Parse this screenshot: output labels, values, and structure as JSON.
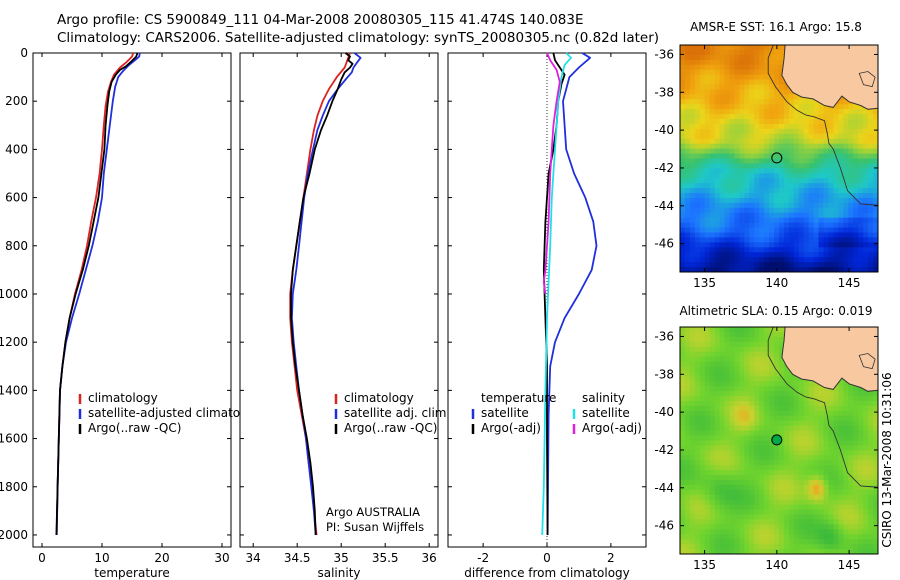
{
  "header": {
    "line1": "Argo profile: CS 5900849_111 04-Mar-2008 20080305_115 41.474S 140.083E",
    "line2": "Climatology: CARS2006. Satellite-adjusted climatology: synTS_20080305.nc (0.82d later)"
  },
  "colors": {
    "climatology": "#dd2222",
    "satellite": "#1f2fdd",
    "argo": "#000000",
    "satellite_diff_salinity": "#22e0e8",
    "argo_diff_salinity": "#dd22dd",
    "land": "#f8c8a0",
    "coast": "#333333",
    "marker": "#00aa44"
  },
  "chart_data": [
    {
      "type": "line",
      "xlabel": "temperature",
      "ylabel": "",
      "xlim": [
        -1.5,
        31.5
      ],
      "ylim": [
        2050,
        0
      ],
      "xticks": [
        "0",
        "10",
        "20",
        "30"
      ],
      "yticks": [
        "0",
        "200",
        "400",
        "600",
        "800",
        "1000",
        "1200",
        "1400",
        "1600",
        "1800",
        "2000"
      ],
      "legend": [
        "climatology",
        "satellite-adjusted climatology",
        "Argo(..raw -QC)"
      ],
      "series": [
        {
          "name": "climatology",
          "color_key": "climatology",
          "points": [
            [
              15.2,
              0
            ],
            [
              15.0,
              15
            ],
            [
              14.0,
              40
            ],
            [
              13.0,
              60
            ],
            [
              12.0,
              90
            ],
            [
              11.5,
              120
            ],
            [
              11.0,
              160
            ],
            [
              10.6,
              220
            ],
            [
              10.3,
              300
            ],
            [
              10.0,
              400
            ],
            [
              9.6,
              500
            ],
            [
              9.0,
              600
            ],
            [
              8.2,
              700
            ],
            [
              7.5,
              800
            ],
            [
              6.6,
              900
            ],
            [
              5.5,
              1000
            ],
            [
              4.6,
              1100
            ],
            [
              3.9,
              1200
            ],
            [
              3.4,
              1300
            ],
            [
              3.0,
              1400
            ],
            [
              2.8,
              1600
            ],
            [
              2.6,
              1800
            ],
            [
              2.45,
              2000
            ]
          ]
        },
        {
          "name": "satellite-adjusted climatology",
          "color_key": "satellite",
          "points": [
            [
              16.3,
              0
            ],
            [
              16.2,
              15
            ],
            [
              15.5,
              30
            ],
            [
              14.5,
              50
            ],
            [
              13.5,
              75
            ],
            [
              12.7,
              100
            ],
            [
              12.2,
              140
            ],
            [
              11.8,
              200
            ],
            [
              11.5,
              260
            ],
            [
              11.3,
              300
            ],
            [
              10.8,
              400
            ],
            [
              10.3,
              500
            ],
            [
              10.0,
              600
            ],
            [
              9.3,
              700
            ],
            [
              8.4,
              800
            ],
            [
              7.3,
              900
            ],
            [
              6.2,
              1000
            ],
            [
              5.0,
              1100
            ],
            [
              4.0,
              1200
            ],
            [
              3.4,
              1300
            ],
            [
              3.0,
              1400
            ],
            [
              2.8,
              1600
            ],
            [
              2.6,
              1800
            ],
            [
              2.45,
              2000
            ]
          ]
        },
        {
          "name": "Argo(..raw -QC)",
          "color_key": "argo",
          "points": [
            [
              15.9,
              0
            ],
            [
              15.7,
              15
            ],
            [
              14.9,
              35
            ],
            [
              14.0,
              55
            ],
            [
              13.0,
              70
            ],
            [
              12.3,
              90
            ],
            [
              11.6,
              120
            ],
            [
              11.2,
              160
            ],
            [
              10.9,
              220
            ],
            [
              10.6,
              300
            ],
            [
              10.4,
              400
            ],
            [
              9.9,
              500
            ],
            [
              9.4,
              600
            ],
            [
              8.6,
              700
            ],
            [
              7.8,
              800
            ],
            [
              6.8,
              900
            ],
            [
              5.6,
              1000
            ],
            [
              4.6,
              1100
            ],
            [
              3.9,
              1200
            ],
            [
              3.4,
              1300
            ],
            [
              3.0,
              1400
            ],
            [
              2.8,
              1600
            ],
            [
              2.6,
              1800
            ],
            [
              2.4,
              2000
            ]
          ]
        }
      ]
    },
    {
      "type": "line",
      "xlabel": "salinity",
      "xlim": [
        33.85,
        36.1
      ],
      "ylim": [
        2050,
        0
      ],
      "xticks": [
        "34",
        "34.5",
        "35",
        "35.5",
        "36"
      ],
      "legend": [
        "climatology",
        "satellite adj. clim.",
        "Argo(..raw -QC)"
      ],
      "annotations": [
        "Argo AUSTRALIA",
        "PI: Susan Wijffels"
      ],
      "series": [
        {
          "name": "climatology",
          "color_key": "climatology",
          "points": [
            [
              35.1,
              0
            ],
            [
              35.08,
              20
            ],
            [
              35.04,
              60
            ],
            [
              34.95,
              100
            ],
            [
              34.86,
              150
            ],
            [
              34.79,
              200
            ],
            [
              34.73,
              260
            ],
            [
              34.69,
              320
            ],
            [
              34.65,
              400
            ],
            [
              34.61,
              500
            ],
            [
              34.57,
              600
            ],
            [
              34.53,
              700
            ],
            [
              34.49,
              800
            ],
            [
              34.45,
              900
            ],
            [
              34.42,
              1000
            ],
            [
              34.42,
              1100
            ],
            [
              34.44,
              1200
            ],
            [
              34.47,
              1300
            ],
            [
              34.5,
              1400
            ],
            [
              34.55,
              1500
            ],
            [
              34.6,
              1600
            ],
            [
              34.63,
              1700
            ],
            [
              34.67,
              1800
            ],
            [
              34.69,
              1900
            ],
            [
              34.72,
              2000
            ]
          ]
        },
        {
          "name": "satellite adj. clim.",
          "color_key": "satellite",
          "points": [
            [
              35.15,
              0
            ],
            [
              35.22,
              20
            ],
            [
              35.18,
              40
            ],
            [
              35.14,
              60
            ],
            [
              35.12,
              80
            ],
            [
              35.05,
              110
            ],
            [
              34.96,
              150
            ],
            [
              34.86,
              200
            ],
            [
              34.79,
              260
            ],
            [
              34.73,
              320
            ],
            [
              34.68,
              400
            ],
            [
              34.62,
              500
            ],
            [
              34.58,
              600
            ],
            [
              34.55,
              700
            ],
            [
              34.52,
              800
            ],
            [
              34.49,
              900
            ],
            [
              34.45,
              1000
            ],
            [
              34.44,
              1100
            ],
            [
              34.46,
              1200
            ],
            [
              34.49,
              1300
            ],
            [
              34.52,
              1400
            ],
            [
              34.56,
              1500
            ],
            [
              34.6,
              1600
            ],
            [
              34.63,
              1700
            ],
            [
              34.66,
              1800
            ],
            [
              34.69,
              1900
            ],
            [
              34.71,
              2000
            ]
          ]
        },
        {
          "name": "Argo(..raw -QC)",
          "color_key": "argo",
          "points": [
            [
              35.05,
              0
            ],
            [
              35.1,
              15
            ],
            [
              35.08,
              30
            ],
            [
              35.13,
              45
            ],
            [
              35.1,
              60
            ],
            [
              35.04,
              80
            ],
            [
              35.0,
              110
            ],
            [
              34.96,
              150
            ],
            [
              34.9,
              200
            ],
            [
              34.84,
              260
            ],
            [
              34.77,
              320
            ],
            [
              34.7,
              400
            ],
            [
              34.64,
              500
            ],
            [
              34.57,
              600
            ],
            [
              34.53,
              700
            ],
            [
              34.49,
              800
            ],
            [
              34.45,
              900
            ],
            [
              34.43,
              1000
            ],
            [
              34.43,
              1100
            ],
            [
              34.45,
              1200
            ],
            [
              34.48,
              1300
            ],
            [
              34.52,
              1400
            ],
            [
              34.56,
              1500
            ],
            [
              34.61,
              1600
            ],
            [
              34.65,
              1700
            ],
            [
              34.68,
              1800
            ],
            [
              34.7,
              1900
            ],
            [
              34.71,
              2000
            ]
          ]
        }
      ]
    },
    {
      "type": "line",
      "xlabel": "difference from climatology",
      "xlim": [
        -3.1,
        3.1
      ],
      "ylim": [
        2050,
        0
      ],
      "xticks": [
        "-2",
        "0",
        "2"
      ],
      "legend_temperature_title": "temperature",
      "legend_salinity_title": "salinity",
      "legend": [
        "satellite",
        "Argo(-adj)",
        "satellite",
        "Argo(-adj)"
      ],
      "series": [
        {
          "name": "temperature satellite",
          "color_key": "satellite",
          "points": [
            [
              1.1,
              0
            ],
            [
              1.35,
              20
            ],
            [
              1.0,
              60
            ],
            [
              0.7,
              100
            ],
            [
              0.5,
              200
            ],
            [
              0.6,
              400
            ],
            [
              0.85,
              500
            ],
            [
              1.2,
              600
            ],
            [
              1.45,
              700
            ],
            [
              1.55,
              800
            ],
            [
              1.4,
              900
            ],
            [
              1.0,
              1000
            ],
            [
              0.55,
              1100
            ],
            [
              0.25,
              1200
            ],
            [
              0.1,
              1300
            ],
            [
              0.05,
              1500
            ],
            [
              0.02,
              2000
            ]
          ]
        },
        {
          "name": "temperature Argo(-adj)",
          "color_key": "argo",
          "points": [
            [
              0.2,
              0
            ],
            [
              0.25,
              30
            ],
            [
              0.4,
              60
            ],
            [
              0.55,
              90
            ],
            [
              0.45,
              130
            ],
            [
              0.35,
              200
            ],
            [
              0.3,
              300
            ],
            [
              0.2,
              400
            ],
            [
              0.05,
              500
            ],
            [
              -0.05,
              700
            ],
            [
              -0.1,
              900
            ],
            [
              -0.05,
              1100
            ],
            [
              0.0,
              1300
            ],
            [
              0.0,
              1600
            ],
            [
              0.02,
              2000
            ]
          ]
        },
        {
          "name": "salinity satellite",
          "color_key": "satellite_diff_salinity",
          "points": [
            [
              0.6,
              0
            ],
            [
              0.75,
              20
            ],
            [
              0.55,
              50
            ],
            [
              0.45,
              100
            ],
            [
              0.35,
              200
            ],
            [
              0.25,
              400
            ],
            [
              0.15,
              600
            ],
            [
              0.1,
              800
            ],
            [
              0.05,
              950
            ],
            [
              0.0,
              1100
            ],
            [
              -0.05,
              1400
            ],
            [
              -0.1,
              1800
            ],
            [
              -0.15,
              2000
            ]
          ]
        },
        {
          "name": "salinity Argo(-adj)",
          "color_key": "argo_diff_salinity",
          "points": [
            [
              0.0,
              0
            ],
            [
              0.1,
              30
            ],
            [
              0.3,
              70
            ],
            [
              0.4,
              120
            ],
            [
              0.3,
              200
            ],
            [
              0.2,
              300
            ],
            [
              0.1,
              500
            ],
            [
              0.05,
              700
            ],
            [
              -0.05,
              900
            ],
            [
              -0.1,
              950
            ],
            [
              -0.05,
              1000
            ]
          ]
        }
      ]
    },
    {
      "type": "heatmap",
      "title": "AMSR-E SST: 16.1  Argo: 15.8",
      "xlim": [
        133.3,
        147
      ],
      "ylim": [
        -47.5,
        -35.5
      ],
      "xticks": [
        "135",
        "140",
        "145"
      ],
      "yticks": [
        "-36",
        "-38",
        "-40",
        "-42",
        "-44",
        "-46"
      ],
      "marker": [
        140.0,
        -41.47
      ]
    },
    {
      "type": "heatmap",
      "title": "Altimetric SLA: 0.15  Argo: 0.019",
      "xlim": [
        133.3,
        147
      ],
      "ylim": [
        -47.5,
        -35.5
      ],
      "xticks": [
        "135",
        "140",
        "145"
      ],
      "yticks": [
        "-36",
        "-38",
        "-40",
        "-42",
        "-44",
        "-46"
      ],
      "marker": [
        140.0,
        -41.47
      ]
    }
  ],
  "footer": {
    "timestamp": "CSIRO 13-Mar-2008 10:31:06"
  }
}
